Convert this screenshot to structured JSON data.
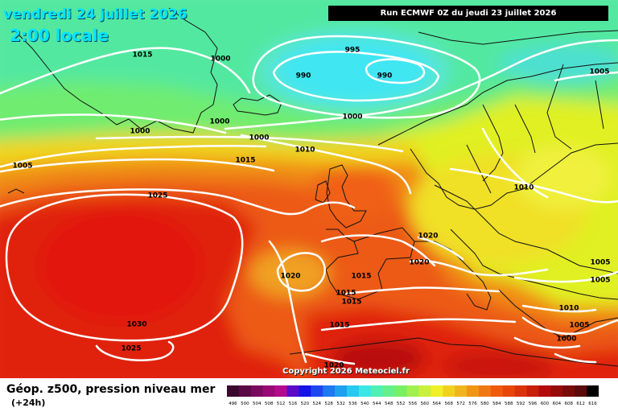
{
  "header": {
    "date": "vendredi 24 juillet 2026",
    "time": "2:00 locale",
    "run": "Run ECMWF 0Z du jeudi 23 juillet 2026"
  },
  "footer": {
    "product": "Géop. z500, pression niveau mer",
    "lead": "(+24h)"
  },
  "copyright": "Copyright 2026 Meteociel.fr",
  "isobar_labels": [
    "1015",
    "1000",
    "995",
    "990",
    "990",
    "1005",
    "1000",
    "1000",
    "1000",
    "1005",
    "1010",
    "1015",
    "1025",
    "1000",
    "1010",
    "1020",
    "1020",
    "1020",
    "1015",
    "1015",
    "1015",
    "1005",
    "1005",
    "1015",
    "1010",
    "1030",
    "1025",
    "1005",
    "1000",
    "1020"
  ],
  "legend": {
    "values": [
      "496",
      "500",
      "504",
      "508",
      "512",
      "516",
      "520",
      "524",
      "528",
      "532",
      "536",
      "540",
      "544",
      "548",
      "552",
      "556",
      "560",
      "564",
      "568",
      "572",
      "576",
      "580",
      "584",
      "588",
      "592",
      "596",
      "600",
      "604",
      "608",
      "612",
      "616"
    ],
    "colors": [
      "#3a0a2e",
      "#5a0a46",
      "#7a0a5e",
      "#9a0a76",
      "#b40a8e",
      "#5a0ac8",
      "#1414e6",
      "#1e46f0",
      "#1e78f0",
      "#1ea0f0",
      "#28c8f0",
      "#3ce6e6",
      "#50f0b4",
      "#64f08c",
      "#78f064",
      "#a0f050",
      "#c8f03c",
      "#f0f028",
      "#f0d21e",
      "#f0b41e",
      "#f09614",
      "#f07814",
      "#f05a0a",
      "#e6460a",
      "#dc320a",
      "#c81e0a",
      "#b40a0a",
      "#960a0a",
      "#780a0a",
      "#5a0a0a",
      "#000000"
    ]
  }
}
